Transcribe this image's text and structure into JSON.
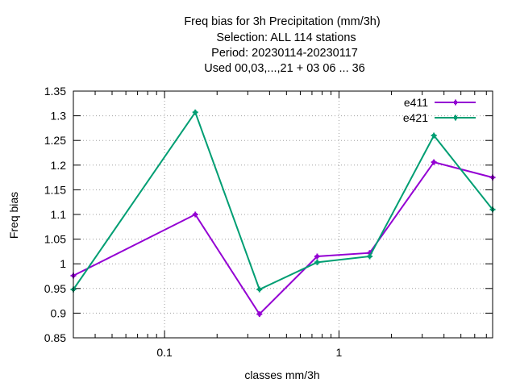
{
  "chart_data": {
    "type": "line",
    "title_lines": [
      "Freq bias  for 3h Precipitation (mm/3h)",
      "Selection: ALL    114 stations",
      "Period: 20230114-20230117",
      "Used  00,03,...,21  + 03 06 ... 36"
    ],
    "xlabel": "classes mm/3h",
    "ylabel": "Freq bias",
    "x_scale": "log",
    "xlim": [
      0.03,
      7.6
    ],
    "ylim": [
      0.85,
      1.35
    ],
    "x_ticks": [
      {
        "value": 0.1,
        "label": "0.1"
      },
      {
        "value": 1,
        "label": "1"
      }
    ],
    "x_minor_ticks": [
      0.04,
      0.05,
      0.06,
      0.07,
      0.08,
      0.09,
      0.2,
      0.3,
      0.4,
      0.5,
      0.6,
      0.7,
      0.8,
      0.9,
      2,
      3,
      4,
      5,
      6,
      7
    ],
    "y_ticks": [
      {
        "value": 0.85,
        "label": "0.85"
      },
      {
        "value": 0.9,
        "label": "0.9"
      },
      {
        "value": 0.95,
        "label": "0.95"
      },
      {
        "value": 1.0,
        "label": "1"
      },
      {
        "value": 1.05,
        "label": "1.05"
      },
      {
        "value": 1.1,
        "label": "1.1"
      },
      {
        "value": 1.15,
        "label": "1.15"
      },
      {
        "value": 1.2,
        "label": "1.2"
      },
      {
        "value": 1.25,
        "label": "1.25"
      },
      {
        "value": 1.3,
        "label": "1.3"
      },
      {
        "value": 1.35,
        "label": "1.35"
      }
    ],
    "grid": true,
    "legend_position": "top-right",
    "x": [
      0.03,
      0.15,
      0.35,
      0.75,
      1.5,
      3.5,
      7.6
    ],
    "series": [
      {
        "name": "e411",
        "color": "#9400d3",
        "values": [
          0.976,
          1.1,
          0.898,
          1.015,
          1.022,
          1.206,
          1.175
        ]
      },
      {
        "name": "e421",
        "color": "#009e73",
        "values": [
          0.948,
          1.307,
          0.948,
          1.003,
          1.015,
          1.26,
          1.11
        ]
      }
    ]
  }
}
